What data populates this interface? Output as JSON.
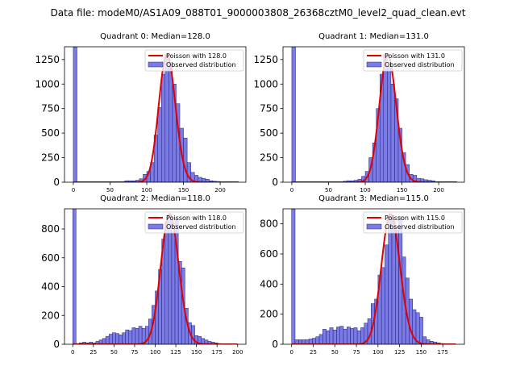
{
  "figure": {
    "title": "Data file: modeM0/AS1A09_088T01_9000003808_26368cztM0_level2_quad_clean.evt",
    "colors": {
      "hist_fill": "#7b7be6",
      "hist_edge": "#1f1f7a",
      "curve": "#e00000"
    }
  },
  "chart_data": [
    {
      "type": "bar",
      "title": "Quadrant 0: Median=128.0",
      "median": 128.0,
      "xlim": [
        -12,
        235
      ],
      "ylim": [
        0,
        1380
      ],
      "xticks": [
        0,
        50,
        100,
        150,
        200
      ],
      "yticks": [
        0,
        250,
        500,
        750,
        1000,
        1250
      ],
      "bin_width": 5,
      "legend": [
        "Poisson with 128.0",
        "Observed distribution"
      ],
      "bins": [
        [
          0,
          1380
        ],
        [
          70,
          15
        ],
        [
          75,
          15
        ],
        [
          80,
          15
        ],
        [
          85,
          20
        ],
        [
          90,
          35
        ],
        [
          95,
          80
        ],
        [
          100,
          110
        ],
        [
          105,
          200
        ],
        [
          110,
          480
        ],
        [
          115,
          760
        ],
        [
          120,
          1100
        ],
        [
          125,
          1300
        ],
        [
          130,
          1210
        ],
        [
          135,
          1000
        ],
        [
          140,
          800
        ],
        [
          145,
          550
        ],
        [
          150,
          450
        ],
        [
          155,
          200
        ],
        [
          160,
          100
        ],
        [
          165,
          70
        ],
        [
          170,
          50
        ],
        [
          175,
          40
        ],
        [
          180,
          30
        ],
        [
          185,
          15
        ],
        [
          190,
          10
        ],
        [
          195,
          8
        ]
      ]
    },
    {
      "type": "bar",
      "title": "Quadrant 1: Median=131.0",
      "median": 131.0,
      "xlim": [
        -12,
        235
      ],
      "ylim": [
        0,
        1380
      ],
      "xticks": [
        0,
        50,
        100,
        150,
        200
      ],
      "yticks": [
        0,
        250,
        500,
        750,
        1000,
        1250
      ],
      "bin_width": 5,
      "legend": [
        "Poisson with 131.0",
        "Observed distribution"
      ],
      "bins": [
        [
          0,
          1380
        ],
        [
          70,
          10
        ],
        [
          75,
          15
        ],
        [
          80,
          15
        ],
        [
          85,
          20
        ],
        [
          90,
          30
        ],
        [
          95,
          60
        ],
        [
          100,
          110
        ],
        [
          105,
          250
        ],
        [
          110,
          400
        ],
        [
          115,
          750
        ],
        [
          120,
          1100
        ],
        [
          125,
          1300
        ],
        [
          130,
          1180
        ],
        [
          135,
          1000
        ],
        [
          140,
          850
        ],
        [
          145,
          550
        ],
        [
          150,
          300
        ],
        [
          155,
          180
        ],
        [
          160,
          80
        ],
        [
          165,
          70
        ],
        [
          170,
          40
        ],
        [
          175,
          35
        ],
        [
          180,
          25
        ],
        [
          185,
          20
        ],
        [
          190,
          15
        ]
      ]
    },
    {
      "type": "bar",
      "title": "Quadrant 2: Median=118.0",
      "median": 118.0,
      "xlim": [
        -10,
        210
      ],
      "ylim": [
        0,
        940
      ],
      "xticks": [
        0,
        25,
        50,
        75,
        100,
        125,
        150,
        175,
        200
      ],
      "yticks": [
        0,
        200,
        400,
        600,
        800
      ],
      "bin_width": 4,
      "legend": [
        "Poisson with 118.0",
        "Observed distribution"
      ],
      "bins": [
        [
          0,
          940
        ],
        [
          4,
          5
        ],
        [
          8,
          10
        ],
        [
          12,
          15
        ],
        [
          16,
          10
        ],
        [
          20,
          15
        ],
        [
          24,
          10
        ],
        [
          28,
          20
        ],
        [
          32,
          30
        ],
        [
          36,
          40
        ],
        [
          40,
          55
        ],
        [
          44,
          70
        ],
        [
          48,
          80
        ],
        [
          52,
          75
        ],
        [
          56,
          65
        ],
        [
          60,
          80
        ],
        [
          64,
          100
        ],
        [
          68,
          95
        ],
        [
          72,
          115
        ],
        [
          76,
          110
        ],
        [
          80,
          125
        ],
        [
          84,
          110
        ],
        [
          88,
          125
        ],
        [
          92,
          175
        ],
        [
          96,
          270
        ],
        [
          100,
          370
        ],
        [
          104,
          520
        ],
        [
          108,
          730
        ],
        [
          112,
          850
        ],
        [
          116,
          905
        ],
        [
          120,
          780
        ],
        [
          124,
          875
        ],
        [
          128,
          575
        ],
        [
          132,
          530
        ],
        [
          136,
          250
        ],
        [
          140,
          150
        ],
        [
          144,
          130
        ],
        [
          148,
          60
        ],
        [
          152,
          55
        ],
        [
          156,
          40
        ],
        [
          160,
          30
        ],
        [
          164,
          20
        ],
        [
          168,
          15
        ],
        [
          172,
          10
        ],
        [
          176,
          5
        ]
      ]
    },
    {
      "type": "bar",
      "title": "Quadrant 3: Median=115.0",
      "median": 115.0,
      "xlim": [
        -10,
        200
      ],
      "ylim": [
        0,
        900
      ],
      "xticks": [
        0,
        25,
        50,
        75,
        100,
        125,
        150,
        175
      ],
      "yticks": [
        0,
        200,
        400,
        600,
        800
      ],
      "bin_width": 4,
      "legend": [
        "Poisson with 115.0",
        "Observed distribution"
      ],
      "bins": [
        [
          0,
          900
        ],
        [
          4,
          30
        ],
        [
          8,
          30
        ],
        [
          12,
          30
        ],
        [
          16,
          30
        ],
        [
          20,
          35
        ],
        [
          24,
          40
        ],
        [
          28,
          50
        ],
        [
          32,
          65
        ],
        [
          36,
          100
        ],
        [
          40,
          90
        ],
        [
          44,
          110
        ],
        [
          48,
          95
        ],
        [
          52,
          115
        ],
        [
          56,
          120
        ],
        [
          60,
          100
        ],
        [
          64,
          115
        ],
        [
          68,
          105
        ],
        [
          72,
          110
        ],
        [
          76,
          90
        ],
        [
          80,
          110
        ],
        [
          84,
          140
        ],
        [
          88,
          170
        ],
        [
          92,
          270
        ],
        [
          96,
          300
        ],
        [
          100,
          460
        ],
        [
          104,
          510
        ],
        [
          108,
          660
        ],
        [
          112,
          865
        ],
        [
          116,
          820
        ],
        [
          120,
          760
        ],
        [
          124,
          850
        ],
        [
          128,
          580
        ],
        [
          132,
          440
        ],
        [
          136,
          300
        ],
        [
          140,
          230
        ],
        [
          144,
          210
        ],
        [
          148,
          180
        ],
        [
          152,
          50
        ],
        [
          156,
          30
        ],
        [
          160,
          20
        ],
        [
          164,
          15
        ],
        [
          168,
          10
        ],
        [
          172,
          5
        ]
      ]
    }
  ]
}
